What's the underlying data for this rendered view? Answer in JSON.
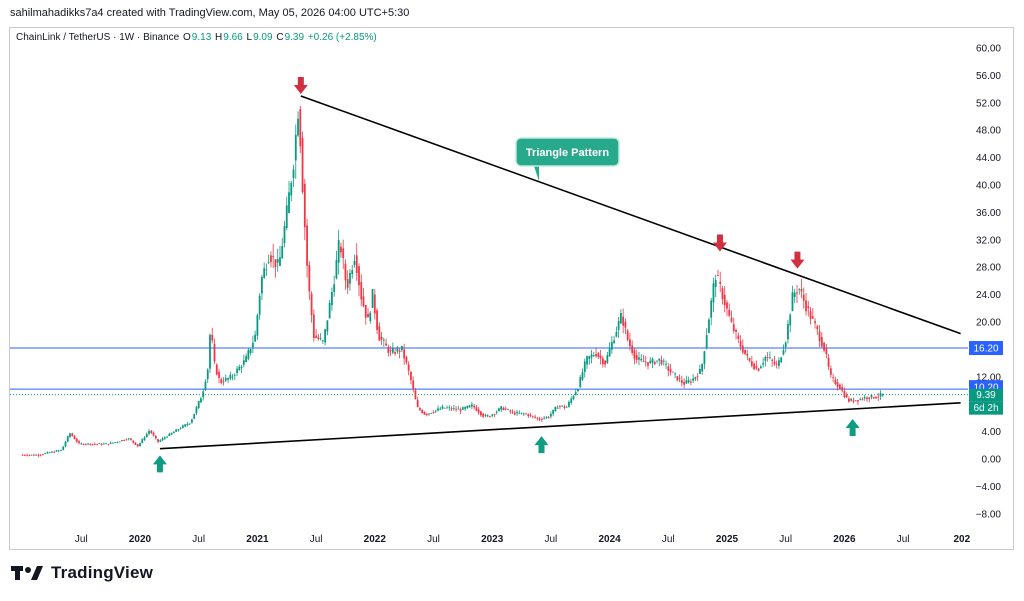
{
  "header": {
    "attribution": "sahilmahadikks7a4 created with TradingView.com, May 05, 2026 04:00 UTC+5:30"
  },
  "symbol": {
    "name": "ChainLink / TetherUS · 1W · Binance",
    "o_label": "O",
    "o_value": "9.13",
    "h_label": "H",
    "h_value": "9.66",
    "l_label": "L",
    "l_value": "9.09",
    "c_label": "C",
    "c_value": "9.39",
    "change": "+0.26 (+2.85%)"
  },
  "footer": {
    "brand": "TradingView"
  },
  "annotation": {
    "text": "Triangle Pattern"
  },
  "colors": {
    "up": "#089981",
    "down": "#f23645",
    "hline": "#2962ff",
    "trend": "#000000",
    "arrow_down": "#d32f3f",
    "arrow_up": "#0f9d80",
    "callout": "#29a98c"
  },
  "chart_data": {
    "type": "candlestick",
    "y_ticks": [
      "60.00",
      "56.00",
      "52.00",
      "48.00",
      "44.00",
      "40.00",
      "36.00",
      "32.00",
      "28.00",
      "24.00",
      "20.00",
      "16.00",
      "12.00",
      "8.00",
      "4.00",
      "0.00",
      "−4.00",
      "−8.00"
    ],
    "x_ticks": [
      "Jul",
      "2020",
      "Jul",
      "2021",
      "Jul",
      "2022",
      "Jul",
      "2023",
      "Jul",
      "2024",
      "Jul",
      "2025",
      "Jul",
      "2026",
      "Jul",
      "202"
    ],
    "ylim": [
      -10,
      62
    ],
    "grid": false,
    "price_labels": [
      {
        "text": "16.20",
        "value": 16.2,
        "color": "#2962ff"
      },
      {
        "text": "10.20",
        "value": 10.2,
        "color": "#2962ff"
      },
      {
        "text": "9.39",
        "value": 9.39,
        "color": "#089981"
      },
      {
        "text": "6d 2h",
        "value": 9.39,
        "color": "#089981"
      }
    ],
    "horizontal_levels": [
      16.2,
      10.2
    ],
    "trendlines": [
      {
        "name": "upper",
        "from": [
          2021.37,
          53.0
        ],
        "to": [
          2026.99,
          18.3
        ]
      },
      {
        "name": "lower",
        "from": [
          2020.17,
          1.5
        ],
        "to": [
          2026.99,
          8.2
        ]
      }
    ],
    "markers": [
      {
        "type": "down",
        "x": 2021.37,
        "y": 53.0
      },
      {
        "type": "down",
        "x": 2024.94,
        "y": 30.0
      },
      {
        "type": "down",
        "x": 2025.6,
        "y": 27.5
      },
      {
        "type": "up",
        "x": 2020.17,
        "y": 1.7
      },
      {
        "type": "up",
        "x": 2023.42,
        "y": 4.5
      },
      {
        "type": "up",
        "x": 2026.07,
        "y": 7.0
      }
    ],
    "callout": {
      "text": "Triangle Pattern",
      "x": 2023.4,
      "y": 40.5
    },
    "waypoints": [
      [
        2019.0,
        0.6
      ],
      [
        2019.15,
        0.6
      ],
      [
        2019.35,
        1.3
      ],
      [
        2019.42,
        3.8
      ],
      [
        2019.5,
        2.2
      ],
      [
        2019.75,
        2.2
      ],
      [
        2019.92,
        3.0
      ],
      [
        2020.0,
        1.9
      ],
      [
        2020.1,
        4.2
      ],
      [
        2020.17,
        2.5
      ],
      [
        2020.3,
        3.9
      ],
      [
        2020.45,
        5.4
      ],
      [
        2020.55,
        9.5
      ],
      [
        2020.6,
        13.5
      ],
      [
        2020.62,
        19.5
      ],
      [
        2020.65,
        14
      ],
      [
        2020.7,
        11.2
      ],
      [
        2020.8,
        12
      ],
      [
        2020.92,
        14.5
      ],
      [
        2021.0,
        18
      ],
      [
        2021.05,
        26
      ],
      [
        2021.12,
        30
      ],
      [
        2021.2,
        28
      ],
      [
        2021.27,
        36
      ],
      [
        2021.33,
        44
      ],
      [
        2021.37,
        52
      ],
      [
        2021.41,
        38
      ],
      [
        2021.45,
        26
      ],
      [
        2021.5,
        18
      ],
      [
        2021.58,
        17
      ],
      [
        2021.67,
        26
      ],
      [
        2021.72,
        32
      ],
      [
        2021.78,
        25
      ],
      [
        2021.85,
        30
      ],
      [
        2021.9,
        24
      ],
      [
        2021.96,
        20
      ],
      [
        2022.0,
        24
      ],
      [
        2022.05,
        18
      ],
      [
        2022.15,
        15.5
      ],
      [
        2022.25,
        16
      ],
      [
        2022.32,
        12
      ],
      [
        2022.38,
        7.5
      ],
      [
        2022.45,
        6.5
      ],
      [
        2022.6,
        7.5
      ],
      [
        2022.75,
        7.2
      ],
      [
        2022.85,
        7.8
      ],
      [
        2022.95,
        6.2
      ],
      [
        2023.0,
        6.3
      ],
      [
        2023.1,
        7.5
      ],
      [
        2023.2,
        6.7
      ],
      [
        2023.3,
        6.6
      ],
      [
        2023.42,
        5.8
      ],
      [
        2023.5,
        6.2
      ],
      [
        2023.58,
        7.8
      ],
      [
        2023.65,
        7.5
      ],
      [
        2023.75,
        10.5
      ],
      [
        2023.82,
        14.5
      ],
      [
        2023.9,
        15.5
      ],
      [
        2023.98,
        14
      ],
      [
        2024.05,
        17.5
      ],
      [
        2024.12,
        21
      ],
      [
        2024.18,
        17
      ],
      [
        2024.25,
        14.5
      ],
      [
        2024.35,
        14
      ],
      [
        2024.45,
        14.5
      ],
      [
        2024.55,
        12.5
      ],
      [
        2024.65,
        11
      ],
      [
        2024.72,
        11.5
      ],
      [
        2024.8,
        13
      ],
      [
        2024.86,
        20
      ],
      [
        2024.92,
        27
      ],
      [
        2024.98,
        24
      ],
      [
        2025.05,
        20
      ],
      [
        2025.12,
        17
      ],
      [
        2025.2,
        14.5
      ],
      [
        2025.28,
        13
      ],
      [
        2025.35,
        15
      ],
      [
        2025.45,
        13.5
      ],
      [
        2025.52,
        17.5
      ],
      [
        2025.58,
        24
      ],
      [
        2025.63,
        25
      ],
      [
        2025.7,
        22
      ],
      [
        2025.78,
        19
      ],
      [
        2025.85,
        16
      ],
      [
        2025.9,
        12
      ],
      [
        2025.98,
        10.5
      ],
      [
        2026.05,
        8.5
      ],
      [
        2026.12,
        8.6
      ],
      [
        2026.2,
        9.0
      ],
      [
        2026.3,
        9.1
      ],
      [
        2026.34,
        9.39
      ]
    ]
  }
}
